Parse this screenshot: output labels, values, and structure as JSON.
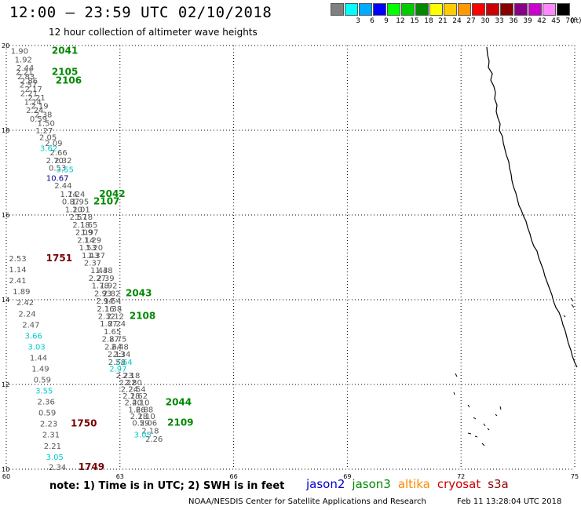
{
  "header": {
    "title": "12:00 – 23:59 UTC 02/10/2018",
    "subtitle": "12 hour collection of altimeter wave heights"
  },
  "legend": {
    "unit": "(ft)",
    "bins": [
      {
        "label": "",
        "color": "#808080"
      },
      {
        "label": "3",
        "color": "#00ffff"
      },
      {
        "label": "6",
        "color": "#00aaff"
      },
      {
        "label": "9",
        "color": "#0000ff"
      },
      {
        "label": "12",
        "color": "#00ff00"
      },
      {
        "label": "15",
        "color": "#00cc00"
      },
      {
        "label": "18",
        "color": "#008800"
      },
      {
        "label": "21",
        "color": "#ffff00"
      },
      {
        "label": "24",
        "color": "#ffcc00"
      },
      {
        "label": "27",
        "color": "#ff9900"
      },
      {
        "label": "30",
        "color": "#ff0000"
      },
      {
        "label": "33",
        "color": "#cc0000"
      },
      {
        "label": "36",
        "color": "#880000"
      },
      {
        "label": "39",
        "color": "#880088"
      },
      {
        "label": "42",
        "color": "#cc00cc"
      },
      {
        "label": "45",
        "color": "#ff88ff"
      },
      {
        "label": "70",
        "color": "#000000"
      }
    ]
  },
  "map": {
    "lon_range": [
      60,
      75
    ],
    "lat_range": [
      10,
      20
    ],
    "lon_ticks": [
      "60",
      "63",
      "66",
      "69",
      "72",
      "75"
    ],
    "lat_ticks": [
      "20",
      "18",
      "16",
      "14",
      "12",
      "10"
    ],
    "grid": true,
    "wave_heights": [
      {
        "lon": 60.35,
        "lat": 19.88,
        "v": "1.90",
        "c": "#555555"
      },
      {
        "lon": 60.45,
        "lat": 19.68,
        "v": "1.92",
        "c": "#555555"
      },
      {
        "lon": 60.5,
        "lat": 19.48,
        "v": "2.44",
        "c": "#555555"
      },
      {
        "lon": 60.48,
        "lat": 19.38,
        "v": "2.21",
        "c": "#555555"
      },
      {
        "lon": 60.52,
        "lat": 19.28,
        "v": "2.83",
        "c": "#555555"
      },
      {
        "lon": 60.6,
        "lat": 19.18,
        "v": "2.86",
        "c": "#555555"
      },
      {
        "lon": 60.58,
        "lat": 19.08,
        "v": "2.57",
        "c": "#555555"
      },
      {
        "lon": 60.72,
        "lat": 18.98,
        "v": "2.17",
        "c": "#555555"
      },
      {
        "lon": 60.6,
        "lat": 18.88,
        "v": "2.21",
        "c": "#555555"
      },
      {
        "lon": 60.8,
        "lat": 18.78,
        "v": "2.21",
        "c": "#555555"
      },
      {
        "lon": 60.7,
        "lat": 18.68,
        "v": "1.24",
        "c": "#555555"
      },
      {
        "lon": 60.88,
        "lat": 18.58,
        "v": "2.19",
        "c": "#555555"
      },
      {
        "lon": 60.75,
        "lat": 18.48,
        "v": "2.24",
        "c": "#555555"
      },
      {
        "lon": 60.98,
        "lat": 18.38,
        "v": "2.38",
        "c": "#555555"
      },
      {
        "lon": 60.85,
        "lat": 18.28,
        "v": "0.59",
        "c": "#555555"
      },
      {
        "lon": 61.05,
        "lat": 18.18,
        "v": "1.50",
        "c": "#555555"
      },
      {
        "lon": 61.0,
        "lat": 18.0,
        "v": "1.27",
        "c": "#555555"
      },
      {
        "lon": 61.1,
        "lat": 17.84,
        "v": "2.05",
        "c": "#555555"
      },
      {
        "lon": 61.25,
        "lat": 17.7,
        "v": "2.09",
        "c": "#555555"
      },
      {
        "lon": 61.12,
        "lat": 17.58,
        "v": "3.62",
        "c": "#00cccc"
      },
      {
        "lon": 61.38,
        "lat": 17.48,
        "v": "2.66",
        "c": "#555555"
      },
      {
        "lon": 61.28,
        "lat": 17.3,
        "v": "2.70",
        "c": "#555555"
      },
      {
        "lon": 61.5,
        "lat": 17.3,
        "v": "2.32",
        "c": "#555555"
      },
      {
        "lon": 61.35,
        "lat": 17.12,
        "v": "0.53",
        "c": "#555555"
      },
      {
        "lon": 61.55,
        "lat": 17.08,
        "v": "3.55",
        "c": "#00cccc"
      },
      {
        "lon": 61.35,
        "lat": 16.88,
        "v": "10.67",
        "c": "#000088"
      },
      {
        "lon": 61.5,
        "lat": 16.7,
        "v": "2.44",
        "c": "#555555"
      },
      {
        "lon": 61.65,
        "lat": 16.5,
        "v": "1.74",
        "c": "#555555"
      },
      {
        "lon": 61.85,
        "lat": 16.5,
        "v": "1.24",
        "c": "#555555"
      },
      {
        "lon": 61.7,
        "lat": 16.32,
        "v": "0.87",
        "c": "#555555"
      },
      {
        "lon": 61.95,
        "lat": 16.32,
        "v": "1.95",
        "c": "#555555"
      },
      {
        "lon": 61.78,
        "lat": 16.14,
        "v": "1.20",
        "c": "#555555"
      },
      {
        "lon": 61.98,
        "lat": 16.14,
        "v": "1.01",
        "c": "#555555"
      },
      {
        "lon": 61.9,
        "lat": 15.96,
        "v": "2.57",
        "c": "#555555"
      },
      {
        "lon": 62.05,
        "lat": 15.96,
        "v": "1.18",
        "c": "#555555"
      },
      {
        "lon": 61.98,
        "lat": 15.78,
        "v": "2.18",
        "c": "#555555"
      },
      {
        "lon": 62.18,
        "lat": 15.78,
        "v": "1.65",
        "c": "#555555"
      },
      {
        "lon": 62.05,
        "lat": 15.6,
        "v": "2.09",
        "c": "#555555"
      },
      {
        "lon": 62.2,
        "lat": 15.6,
        "v": "1.97",
        "c": "#555555"
      },
      {
        "lon": 62.1,
        "lat": 15.42,
        "v": "2.14",
        "c": "#555555"
      },
      {
        "lon": 62.28,
        "lat": 15.42,
        "v": "1.29",
        "c": "#555555"
      },
      {
        "lon": 62.15,
        "lat": 15.24,
        "v": "1.53",
        "c": "#555555"
      },
      {
        "lon": 62.32,
        "lat": 15.24,
        "v": "1.20",
        "c": "#555555"
      },
      {
        "lon": 62.22,
        "lat": 15.06,
        "v": "1.43",
        "c": "#555555"
      },
      {
        "lon": 62.38,
        "lat": 15.06,
        "v": "1.37",
        "c": "#555555"
      },
      {
        "lon": 62.28,
        "lat": 14.88,
        "v": "2.37",
        "c": "#555555"
      },
      {
        "lon": 62.45,
        "lat": 14.7,
        "v": "1.43",
        "c": "#555555"
      },
      {
        "lon": 62.58,
        "lat": 14.7,
        "v": "1.48",
        "c": "#555555"
      },
      {
        "lon": 62.4,
        "lat": 14.52,
        "v": "2.27",
        "c": "#555555"
      },
      {
        "lon": 62.62,
        "lat": 14.52,
        "v": "2.39",
        "c": "#555555"
      },
      {
        "lon": 62.48,
        "lat": 14.34,
        "v": "1.78",
        "c": "#555555"
      },
      {
        "lon": 62.7,
        "lat": 14.34,
        "v": "1.92",
        "c": "#555555"
      },
      {
        "lon": 62.55,
        "lat": 14.16,
        "v": "2.93",
        "c": "#555555"
      },
      {
        "lon": 62.78,
        "lat": 14.16,
        "v": "2.82",
        "c": "#555555"
      },
      {
        "lon": 62.6,
        "lat": 13.98,
        "v": "2.94",
        "c": "#555555"
      },
      {
        "lon": 62.8,
        "lat": 13.98,
        "v": "1.54",
        "c": "#555555"
      },
      {
        "lon": 62.62,
        "lat": 13.8,
        "v": "2.16",
        "c": "#555555"
      },
      {
        "lon": 62.82,
        "lat": 13.8,
        "v": "1.38",
        "c": "#555555"
      },
      {
        "lon": 62.65,
        "lat": 13.62,
        "v": "2.32",
        "c": "#555555"
      },
      {
        "lon": 62.88,
        "lat": 13.62,
        "v": "2.12",
        "c": "#555555"
      },
      {
        "lon": 62.7,
        "lat": 13.44,
        "v": "1.87",
        "c": "#555555"
      },
      {
        "lon": 62.92,
        "lat": 13.44,
        "v": "2.24",
        "c": "#555555"
      },
      {
        "lon": 62.8,
        "lat": 13.26,
        "v": "1.65",
        "c": "#555555"
      },
      {
        "lon": 62.75,
        "lat": 13.08,
        "v": "2.87",
        "c": "#555555"
      },
      {
        "lon": 62.95,
        "lat": 13.08,
        "v": "2.75",
        "c": "#555555"
      },
      {
        "lon": 62.82,
        "lat": 12.9,
        "v": "2.64",
        "c": "#555555"
      },
      {
        "lon": 63.0,
        "lat": 12.9,
        "v": "2.48",
        "c": "#555555"
      },
      {
        "lon": 62.9,
        "lat": 12.72,
        "v": "2.13",
        "c": "#555555"
      },
      {
        "lon": 63.05,
        "lat": 12.72,
        "v": "2.34",
        "c": "#555555"
      },
      {
        "lon": 62.92,
        "lat": 12.54,
        "v": "2.58",
        "c": "#555555"
      },
      {
        "lon": 63.1,
        "lat": 12.54,
        "v": "2.64",
        "c": "#00cccc"
      },
      {
        "lon": 62.95,
        "lat": 12.38,
        "v": "2.97",
        "c": "#00cccc"
      },
      {
        "lon": 63.12,
        "lat": 12.22,
        "v": "2.23",
        "c": "#555555"
      },
      {
        "lon": 63.3,
        "lat": 12.22,
        "v": "2.18",
        "c": "#555555"
      },
      {
        "lon": 63.2,
        "lat": 12.06,
        "v": "2.22",
        "c": "#555555"
      },
      {
        "lon": 63.35,
        "lat": 12.06,
        "v": "2.80",
        "c": "#555555"
      },
      {
        "lon": 63.25,
        "lat": 11.9,
        "v": "2.24",
        "c": "#555555"
      },
      {
        "lon": 63.45,
        "lat": 11.9,
        "v": "2.54",
        "c": "#555555"
      },
      {
        "lon": 63.3,
        "lat": 11.74,
        "v": "2.18",
        "c": "#555555"
      },
      {
        "lon": 63.5,
        "lat": 11.74,
        "v": "2.62",
        "c": "#555555"
      },
      {
        "lon": 63.35,
        "lat": 11.58,
        "v": "2.40",
        "c": "#555555"
      },
      {
        "lon": 63.55,
        "lat": 11.58,
        "v": "2.10",
        "c": "#555555"
      },
      {
        "lon": 63.45,
        "lat": 11.42,
        "v": "1.66",
        "c": "#555555"
      },
      {
        "lon": 63.65,
        "lat": 11.42,
        "v": "2.88",
        "c": "#555555"
      },
      {
        "lon": 63.5,
        "lat": 11.26,
        "v": "2.18",
        "c": "#555555"
      },
      {
        "lon": 63.7,
        "lat": 11.26,
        "v": "2.10",
        "c": "#555555"
      },
      {
        "lon": 63.55,
        "lat": 11.1,
        "v": "0.59",
        "c": "#555555"
      },
      {
        "lon": 63.75,
        "lat": 11.1,
        "v": "2.06",
        "c": "#555555"
      },
      {
        "lon": 63.8,
        "lat": 10.92,
        "v": "2.18",
        "c": "#555555"
      },
      {
        "lon": 63.6,
        "lat": 10.82,
        "v": "3.05",
        "c": "#00cccc"
      },
      {
        "lon": 63.9,
        "lat": 10.72,
        "v": "2.26",
        "c": "#555555"
      },
      {
        "lon": 60.3,
        "lat": 14.98,
        "v": "2.53",
        "c": "#555555"
      },
      {
        "lon": 60.3,
        "lat": 14.72,
        "v": "1.14",
        "c": "#555555"
      },
      {
        "lon": 60.3,
        "lat": 14.46,
        "v": "2.41",
        "c": "#555555"
      },
      {
        "lon": 60.4,
        "lat": 14.2,
        "v": "1.89",
        "c": "#555555"
      },
      {
        "lon": 60.5,
        "lat": 13.94,
        "v": "2.42",
        "c": "#555555"
      },
      {
        "lon": 60.55,
        "lat": 13.68,
        "v": "2.24",
        "c": "#555555"
      },
      {
        "lon": 60.65,
        "lat": 13.42,
        "v": "2.47",
        "c": "#555555"
      },
      {
        "lon": 60.72,
        "lat": 13.16,
        "v": "3.66",
        "c": "#00cccc"
      },
      {
        "lon": 60.8,
        "lat": 12.9,
        "v": "3.03",
        "c": "#00cccc"
      },
      {
        "lon": 60.85,
        "lat": 12.64,
        "v": "1.44",
        "c": "#555555"
      },
      {
        "lon": 60.9,
        "lat": 12.38,
        "v": "1.49",
        "c": "#555555"
      },
      {
        "lon": 60.95,
        "lat": 12.12,
        "v": "0.59",
        "c": "#555555"
      },
      {
        "lon": 61.0,
        "lat": 11.86,
        "v": "3.55",
        "c": "#00cccc"
      },
      {
        "lon": 61.05,
        "lat": 11.6,
        "v": "2.36",
        "c": "#555555"
      },
      {
        "lon": 61.08,
        "lat": 11.34,
        "v": "0.59",
        "c": "#555555"
      },
      {
        "lon": 61.12,
        "lat": 11.08,
        "v": "2.23",
        "c": "#555555"
      },
      {
        "lon": 61.18,
        "lat": 10.82,
        "v": "2.31",
        "c": "#555555"
      },
      {
        "lon": 61.22,
        "lat": 10.56,
        "v": "2.21",
        "c": "#555555"
      },
      {
        "lon": 61.28,
        "lat": 10.3,
        "v": "3.05",
        "c": "#00cccc"
      },
      {
        "lon": 61.35,
        "lat": 10.06,
        "v": "2.34",
        "c": "#555555"
      }
    ],
    "track_times": [
      {
        "lon": 61.2,
        "lat": 19.88,
        "v": "2041",
        "c": "#008800"
      },
      {
        "lon": 61.2,
        "lat": 19.38,
        "v": "2105",
        "c": "#008800"
      },
      {
        "lon": 61.3,
        "lat": 19.18,
        "v": "2106",
        "c": "#008800"
      },
      {
        "lon": 62.45,
        "lat": 16.5,
        "v": "2042",
        "c": "#008800"
      },
      {
        "lon": 62.3,
        "lat": 16.32,
        "v": "2107",
        "c": "#008800"
      },
      {
        "lon": 61.05,
        "lat": 14.98,
        "v": "1751",
        "c": "#770000"
      },
      {
        "lon": 63.15,
        "lat": 14.16,
        "v": "2043",
        "c": "#008800"
      },
      {
        "lon": 63.25,
        "lat": 13.62,
        "v": "2108",
        "c": "#008800"
      },
      {
        "lon": 64.2,
        "lat": 11.58,
        "v": "2044",
        "c": "#008800"
      },
      {
        "lon": 61.7,
        "lat": 11.08,
        "v": "1750",
        "c": "#770000"
      },
      {
        "lon": 64.25,
        "lat": 11.1,
        "v": "2109",
        "c": "#008800"
      },
      {
        "lon": 61.9,
        "lat": 10.06,
        "v": "1749",
        "c": "#770000"
      }
    ]
  },
  "footer": {
    "note": "note: 1) Time is in UTC; 2) SWH is in feet",
    "satellites": [
      {
        "name": "jason2",
        "color": "#0000cc"
      },
      {
        "name": "jason3",
        "color": "#008800"
      },
      {
        "name": "altika",
        "color": "#ff8800"
      },
      {
        "name": "cryosat",
        "color": "#cc0000"
      },
      {
        "name": "s3a",
        "color": "#880000"
      }
    ],
    "credit": "NOAA/NESDIS Center for Satellite Applications and Research",
    "generated": "Feb 11 13:28:04 UTC 2018"
  }
}
